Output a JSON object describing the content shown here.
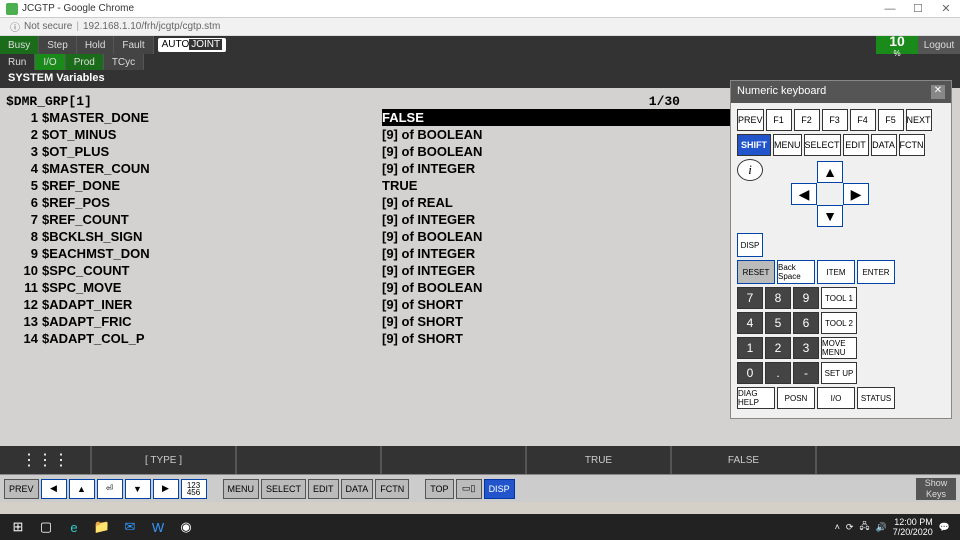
{
  "chrome": {
    "title": "JCGTP - Google Chrome",
    "url": "192.168.1.10/frh/jcgtp/cgtp.stm",
    "secure_label": "Not secure"
  },
  "status": {
    "busy": "Busy",
    "step": "Step",
    "hold": "Hold",
    "fault": "Fault",
    "run": "Run",
    "io": "I/O",
    "prod": "Prod",
    "tcyc": "TCyc",
    "mode_auto": "AUTO",
    "mode_joint": "JOINT",
    "percent": "10",
    "percent_sym": "%",
    "logout": "Logout"
  },
  "header": "SYSTEM Variables",
  "vars": {
    "group": "$DMR_GRP[1]",
    "page": "1/30",
    "rows": [
      {
        "n": "1",
        "name": "$MASTER_DONE",
        "val": "FALSE",
        "sel": true
      },
      {
        "n": "2",
        "name": "$OT_MINUS",
        "val": "[9] of BOOLEAN"
      },
      {
        "n": "3",
        "name": "$OT_PLUS",
        "val": "[9] of BOOLEAN"
      },
      {
        "n": "4",
        "name": "$MASTER_COUN",
        "val": "[9] of INTEGER"
      },
      {
        "n": "5",
        "name": "$REF_DONE",
        "val": "TRUE"
      },
      {
        "n": "6",
        "name": "$REF_POS",
        "val": "[9] of REAL"
      },
      {
        "n": "7",
        "name": "$REF_COUNT",
        "val": "[9] of INTEGER"
      },
      {
        "n": "8",
        "name": "$BCKLSH_SIGN",
        "val": "[9] of BOOLEAN"
      },
      {
        "n": "9",
        "name": "$EACHMST_DON",
        "val": "[9] of INTEGER"
      },
      {
        "n": "10",
        "name": "$SPC_COUNT",
        "val": "[9] of INTEGER"
      },
      {
        "n": "11",
        "name": "$SPC_MOVE",
        "val": "[9] of BOOLEAN"
      },
      {
        "n": "12",
        "name": "$ADAPT_INER",
        "val": "[9] of SHORT"
      },
      {
        "n": "13",
        "name": "$ADAPT_FRIC",
        "val": "[9] of SHORT"
      },
      {
        "n": "14",
        "name": "$ADAPT_COL_P",
        "val": "[9] of SHORT"
      }
    ]
  },
  "nk": {
    "title": "Numeric keyboard",
    "row1": [
      "PREV",
      "F1",
      "F2",
      "F3",
      "F4",
      "F5",
      "NEXT"
    ],
    "row2": [
      "SHIFT",
      "MENU",
      "SELECT",
      "EDIT",
      "DATA",
      "FCTN"
    ],
    "arrows": {
      "up": "▲",
      "left": "◀",
      "right": "▶",
      "down": "▼"
    },
    "rowA": [
      "DISP"
    ],
    "rowB": [
      "RESET",
      "Back Space",
      "ITEM",
      "ENTER"
    ],
    "pad": [
      [
        "7",
        "8",
        "9",
        "TOOL 1"
      ],
      [
        "4",
        "5",
        "6",
        "TOOL 2"
      ],
      [
        "1",
        "2",
        "3",
        "MOVE MENU"
      ],
      [
        "0",
        ".",
        "-",
        "SET UP"
      ]
    ],
    "rowC": [
      "DIAG HELP",
      "POSN",
      "I/O",
      "STATUS"
    ]
  },
  "softkeys": {
    "type": "[ TYPE ]",
    "true": "TRUE",
    "false": "FALSE"
  },
  "bottom": {
    "prev": "PREV",
    "menu": "MENU",
    "select": "SELECT",
    "edit": "EDIT",
    "data": "DATA",
    "fctn": "FCTN",
    "top": "TOP",
    "disp": "DISP",
    "show": "Show Keys"
  },
  "clock": {
    "time": "12:00 PM",
    "date": "7/20/2020"
  }
}
